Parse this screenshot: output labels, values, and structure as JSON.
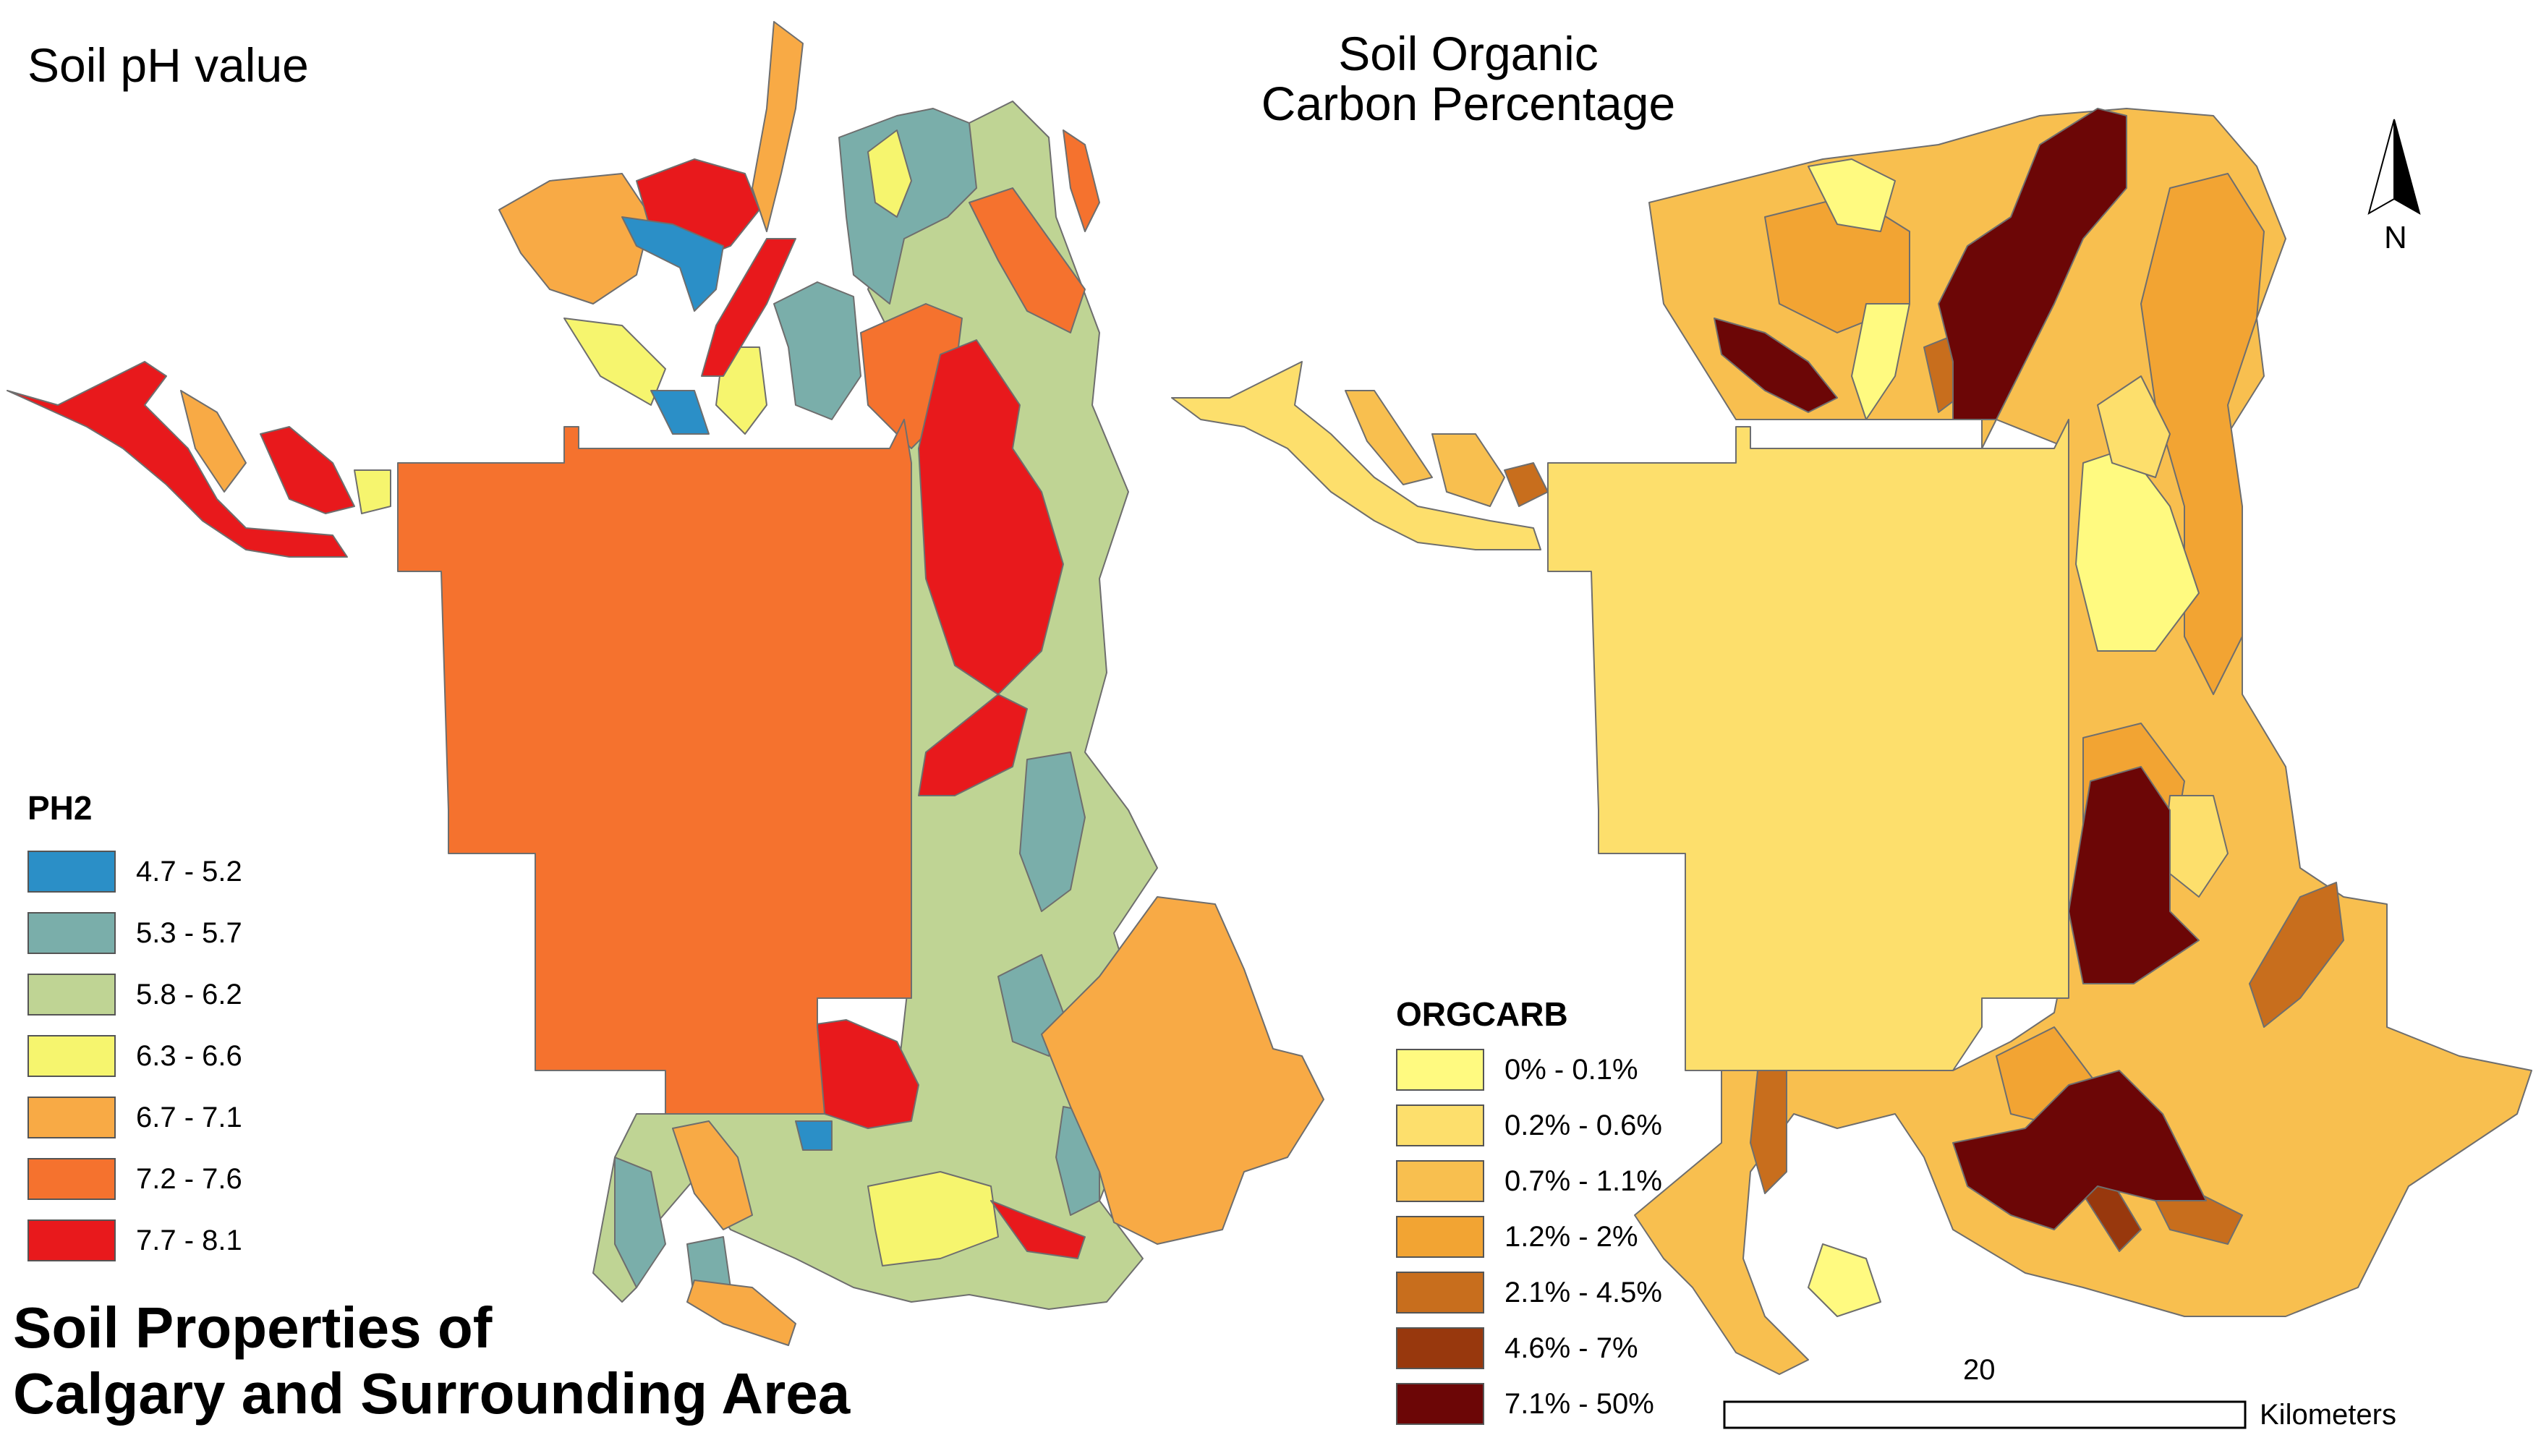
{
  "maps": {
    "ph": {
      "title": "Soil pH value"
    },
    "orgcarb": {
      "title_line1": "Soil Organic",
      "title_line2": "Carbon Percentage"
    }
  },
  "main_title": {
    "line1": "Soil Properties of",
    "line2": "Calgary and Surrounding Area"
  },
  "ph_legend": {
    "title": "PH2",
    "classes": [
      {
        "label": "4.7 - 5.2",
        "color": "#2b8fc7"
      },
      {
        "label": "5.3 - 5.7",
        "color": "#7aaeaa"
      },
      {
        "label": "5.8 - 6.2",
        "color": "#bfd494"
      },
      {
        "label": "6.3 - 6.6",
        "color": "#f6f56e"
      },
      {
        "label": "6.7 - 7.1",
        "color": "#f8aa45"
      },
      {
        "label": "7.2 - 7.6",
        "color": "#f5722e"
      },
      {
        "label": "7.7 - 8.1",
        "color": "#e8191c"
      }
    ]
  },
  "orgcarb_legend": {
    "title": "ORGCARB",
    "classes": [
      {
        "label": "0% - 0.1%",
        "color": "#fffa80"
      },
      {
        "label": "0.2% - 0.6%",
        "color": "#fddf6c"
      },
      {
        "label": "0.7% - 1.1%",
        "color": "#f8bf4f"
      },
      {
        "label": "1.2% - 2%",
        "color": "#f2a433"
      },
      {
        "label": "2.1% - 4.5%",
        "color": "#c86e1d"
      },
      {
        "label": "4.6% - 7%",
        "color": "#98380d"
      },
      {
        "label": "7.1% - 50%",
        "color": "#6c0606"
      }
    ]
  },
  "north_arrow": {
    "label": "N"
  },
  "scale_bar": {
    "value": "20",
    "unit": "Kilometers"
  }
}
